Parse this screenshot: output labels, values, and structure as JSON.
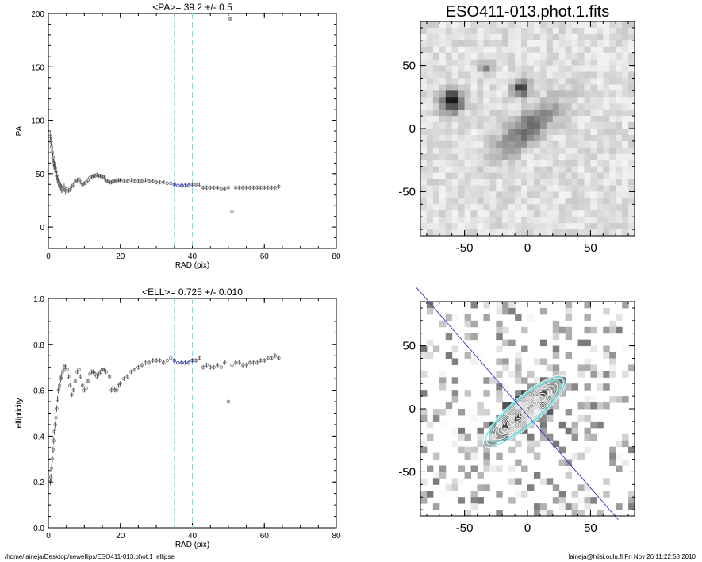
{
  "footer": {
    "path": "/home/laineja/Desktop/newellips/ESO411-013.phot.1_ellipse",
    "user_time": "laineja@hiisi.oulu.fi  Fri Nov 26 11:22:58 2010"
  },
  "colors": {
    "axis": "#000000",
    "marker_grey": "#707070",
    "marker_highlight": "#3030c0",
    "vline": "#66e0e0",
    "major_axis_line": "#3030c0",
    "ellipse_outer": "#66e0e0",
    "contour": "#ffffff"
  },
  "chart_data": [
    {
      "id": "pa",
      "type": "scatter",
      "title": "<PA>=  39.2 +/-   0.5",
      "xlabel": "RAD (pix)",
      "ylabel": "PA",
      "xlim": [
        0,
        80
      ],
      "ylim": [
        -20,
        200
      ],
      "xticks": [
        "0",
        "20",
        "40",
        "60",
        "80"
      ],
      "yticks": [
        "0",
        "50",
        "100",
        "150",
        "200"
      ],
      "vlines": [
        35,
        40
      ],
      "x": [
        0.5,
        0.7,
        0.9,
        1.1,
        1.3,
        1.5,
        1.7,
        1.9,
        2.1,
        2.3,
        2.5,
        2.8,
        3.1,
        3.4,
        3.7,
        4.0,
        4.4,
        4.8,
        5.2,
        5.6,
        6.0,
        6.5,
        7.0,
        7.5,
        8.0,
        8.5,
        9.0,
        9.5,
        10.0,
        10.5,
        11.0,
        11.5,
        12.0,
        12.5,
        13.0,
        13.5,
        14.0,
        14.5,
        15.0,
        15.5,
        16.0,
        16.5,
        17.0,
        17.5,
        18.0,
        18.5,
        19.0,
        19.5,
        20.0,
        21.0,
        22.0,
        23.0,
        24.0,
        25.0,
        26.0,
        27.0,
        28.0,
        29.0,
        30.0,
        31.0,
        32.0,
        33.0,
        34.0,
        35.0,
        36.0,
        37.0,
        38.0,
        39.0,
        40.0,
        41.0,
        42.0,
        43.0,
        44.0,
        45.0,
        46.0,
        47.0,
        48.0,
        49.0,
        50.0,
        50.5,
        51.0,
        52.0,
        53.0,
        54.0,
        55.0,
        56.0,
        57.0,
        58.0,
        59.0,
        60.0,
        61.0,
        62.0,
        63.0,
        64.0
      ],
      "values": [
        85,
        80,
        75,
        70,
        65,
        60,
        58,
        55,
        52,
        48,
        45,
        42,
        40,
        38,
        36,
        35,
        37,
        34,
        36,
        34,
        35,
        38,
        40,
        43,
        44,
        45,
        42,
        40,
        41,
        42,
        44,
        46,
        47,
        48,
        48,
        49,
        48,
        48,
        47,
        47,
        44,
        43,
        42,
        42,
        43,
        43,
        44,
        44,
        44,
        43,
        43,
        44,
        43,
        43,
        43,
        44,
        43,
        43,
        42,
        42,
        42,
        41,
        41,
        40,
        39,
        39,
        39,
        39,
        40,
        40,
        40,
        37,
        37,
        37,
        37,
        37,
        36,
        36,
        37,
        195,
        15,
        37,
        37,
        37,
        37,
        37,
        37,
        37,
        37,
        37,
        37,
        37,
        37,
        38
      ],
      "highlight_range": [
        35,
        40
      ]
    },
    {
      "id": "ell",
      "type": "scatter",
      "title": "<ELL>= 0.725 +/-  0.010",
      "xlabel": "RAD (pix)",
      "ylabel": "ellipticity",
      "xlim": [
        0,
        80
      ],
      "ylim": [
        0.0,
        1.0
      ],
      "xticks": [
        "0",
        "20",
        "40",
        "60",
        "80"
      ],
      "yticks": [
        "0.0",
        "0.2",
        "0.4",
        "0.6",
        "0.8",
        "1.0"
      ],
      "vlines": [
        35,
        40
      ],
      "x": [
        0.5,
        0.7,
        0.9,
        1.1,
        1.3,
        1.5,
        1.7,
        1.9,
        2.1,
        2.3,
        2.5,
        2.8,
        3.1,
        3.4,
        3.7,
        4.0,
        4.4,
        4.8,
        5.2,
        5.6,
        6.0,
        6.5,
        7.0,
        7.5,
        8.0,
        8.5,
        9.0,
        9.5,
        10.0,
        10.5,
        11.0,
        11.5,
        12.0,
        12.5,
        13.0,
        13.5,
        14.0,
        14.5,
        15.0,
        15.5,
        16.0,
        17.0,
        17.5,
        18.0,
        18.5,
        19.0,
        19.5,
        20.0,
        21.0,
        22.0,
        23.0,
        24.0,
        25.0,
        26.0,
        27.0,
        28.0,
        29.0,
        30.0,
        31.0,
        32.0,
        33.0,
        34.0,
        35.0,
        36.0,
        37.0,
        38.0,
        39.0,
        40.0,
        41.0,
        42.0,
        43.0,
        44.0,
        45.0,
        46.0,
        47.0,
        48.0,
        49.0,
        50.0,
        51.0,
        52.0,
        53.0,
        54.0,
        55.0,
        56.0,
        57.0,
        58.0,
        59.0,
        60.0,
        61.0,
        62.0,
        63.0,
        64.0
      ],
      "values": [
        0.2,
        0.22,
        0.26,
        0.3,
        0.34,
        0.38,
        0.42,
        0.45,
        0.48,
        0.52,
        0.56,
        0.6,
        0.62,
        0.65,
        0.66,
        0.68,
        0.7,
        0.7,
        0.69,
        0.66,
        0.62,
        0.58,
        0.6,
        0.64,
        0.68,
        0.69,
        0.66,
        0.62,
        0.6,
        0.61,
        0.64,
        0.67,
        0.68,
        0.68,
        0.67,
        0.66,
        0.67,
        0.68,
        0.69,
        0.69,
        0.68,
        0.66,
        0.6,
        0.61,
        0.6,
        0.6,
        0.62,
        0.63,
        0.65,
        0.66,
        0.68,
        0.69,
        0.7,
        0.71,
        0.72,
        0.72,
        0.73,
        0.73,
        0.73,
        0.72,
        0.73,
        0.74,
        0.73,
        0.72,
        0.72,
        0.72,
        0.72,
        0.73,
        0.73,
        0.74,
        0.7,
        0.71,
        0.7,
        0.7,
        0.71,
        0.7,
        0.72,
        0.55,
        0.71,
        0.72,
        0.72,
        0.71,
        0.71,
        0.72,
        0.72,
        0.72,
        0.73,
        0.73,
        0.74,
        0.74,
        0.75,
        0.74
      ],
      "highlight_range": [
        35,
        40
      ]
    },
    {
      "id": "image-top",
      "type": "heatmap",
      "title": "ESO411-013.phot.1.fits",
      "xlim": [
        -85,
        85
      ],
      "ylim": [
        -85,
        85
      ],
      "xticks": [
        "-50",
        "0",
        "50"
      ],
      "yticks": [
        "-50",
        "0",
        "50"
      ]
    },
    {
      "id": "image-bottom",
      "type": "heatmap",
      "title": "",
      "xlim": [
        -85,
        85
      ],
      "ylim": [
        -85,
        85
      ],
      "xticks": [
        "-50",
        "0",
        "50"
      ],
      "yticks": [
        "-50",
        "0",
        "50"
      ],
      "pa_deg": 39.2,
      "ell": 0.725
    }
  ]
}
